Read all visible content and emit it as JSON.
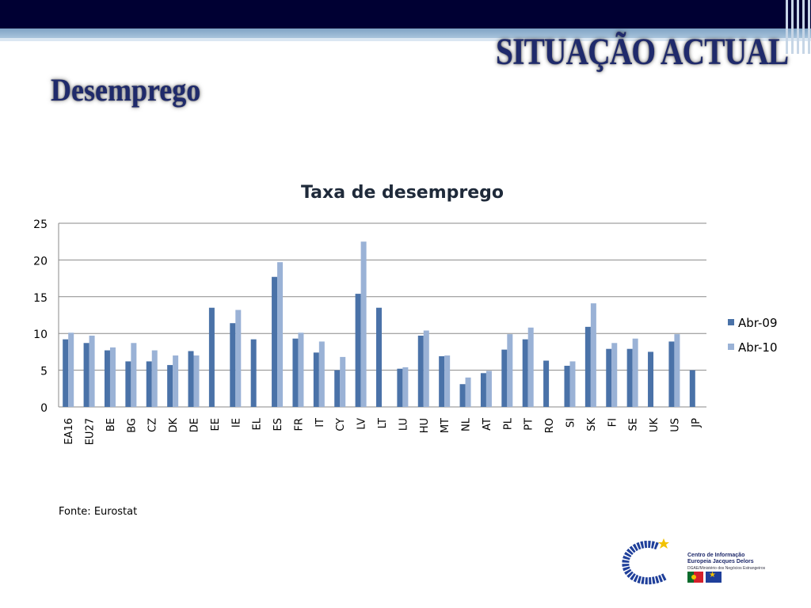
{
  "header": {
    "title": "SITUAÇÃO ACTUAL",
    "subtitle": "Desemprego"
  },
  "footer": {
    "source": "Fonte: Eurostat",
    "logo_line1": "Centro de Informação",
    "logo_line2": "Europeia Jacques Delors",
    "logo_line3": "DGAE/Ministério dos Negócios Estrangeiros"
  },
  "colors": {
    "series_abr09": "#4a72a8",
    "series_abr10": "#9ab2d6",
    "title_color": "#1f2a6b",
    "header_bar": "#000033"
  },
  "chart_data": {
    "type": "bar",
    "title": "Taxa de desemprego",
    "xlabel": "",
    "ylabel": "",
    "ylim": [
      0,
      25
    ],
    "yticks": [
      0,
      5,
      10,
      15,
      20,
      25
    ],
    "grid": true,
    "legend_position": "right",
    "categories": [
      "EA16",
      "EU27",
      "BE",
      "BG",
      "CZ",
      "DK",
      "DE",
      "EE",
      "IE",
      "EL",
      "ES",
      "FR",
      "IT",
      "CY",
      "LV",
      "LT",
      "LU",
      "HU",
      "MT",
      "NL",
      "AT",
      "PL",
      "PT",
      "RO",
      "SI",
      "SK",
      "FI",
      "SE",
      "UK",
      "US",
      "JP"
    ],
    "series": [
      {
        "name": "Abr-09",
        "values": [
          9.2,
          8.7,
          7.7,
          6.2,
          6.2,
          5.7,
          7.6,
          13.5,
          11.4,
          9.2,
          17.7,
          9.3,
          7.4,
          5.0,
          15.4,
          13.5,
          5.2,
          9.7,
          6.9,
          3.1,
          4.6,
          7.8,
          9.2,
          6.3,
          5.6,
          10.9,
          7.9,
          7.9,
          7.5,
          8.9,
          5.0
        ]
      },
      {
        "name": "Abr-10",
        "values": [
          10.1,
          9.7,
          8.1,
          8.7,
          7.7,
          7.0,
          7.0,
          null,
          13.2,
          null,
          19.7,
          10.1,
          8.9,
          6.8,
          22.5,
          null,
          5.4,
          10.4,
          7.0,
          4.0,
          4.9,
          9.9,
          10.8,
          null,
          6.2,
          14.1,
          8.7,
          9.3,
          null,
          9.9,
          null
        ]
      }
    ]
  }
}
